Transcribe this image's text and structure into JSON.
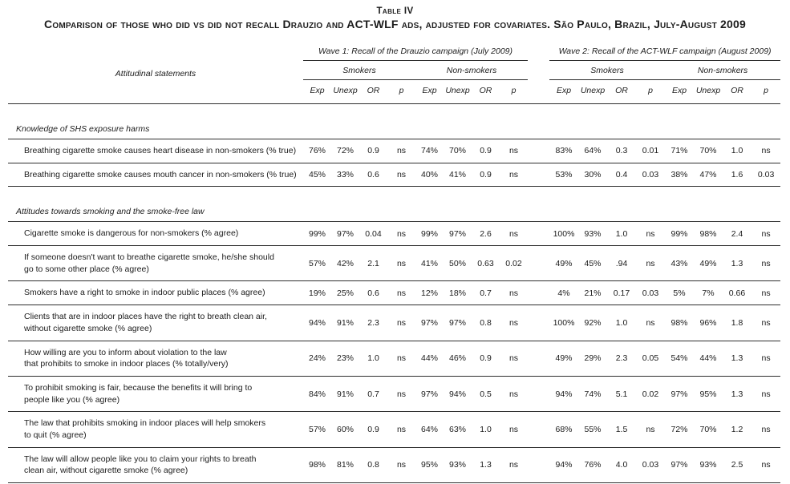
{
  "title": "Table IV",
  "subtitle": "Comparison of those who did vs did not recall Drauzio and ACT-WLF ads, adjusted for covariates. São Paulo, Brazil, July-August 2009",
  "table": {
    "statements_header": "Attitudinal statements",
    "wave1_header": "Wave 1: Recall of the Drauzio campaign (July 2009)",
    "wave2_header": "Wave 2: Recall of the ACT-WLF campaign (August 2009)",
    "groups": [
      "Smokers",
      "Non-smokers"
    ],
    "col_headers": [
      "Exp",
      "Unexp",
      "OR",
      "p"
    ],
    "sections": [
      {
        "label": "Knowledge of SHS exposure harms",
        "rows": [
          {
            "statement": "Breathing cigarette smoke causes heart disease in non-smokers (% true)",
            "values": [
              "76%",
              "72%",
              "0.9",
              "ns",
              "74%",
              "70%",
              "0.9",
              "ns",
              "83%",
              "64%",
              "0.3",
              "0.01",
              "71%",
              "70%",
              "1.0",
              "ns"
            ]
          },
          {
            "statement": "Breathing cigarette smoke causes mouth cancer in non-smokers (% true)",
            "values": [
              "45%",
              "33%",
              "0.6",
              "ns",
              "40%",
              "41%",
              "0.9",
              "ns",
              "53%",
              "30%",
              "0.4",
              "0.03",
              "38%",
              "47%",
              "1.6",
              "0.03"
            ]
          }
        ]
      },
      {
        "label": "Attitudes towards smoking and the smoke-free law",
        "rows": [
          {
            "statement": "Cigarette smoke is dangerous for non-smokers (% agree)",
            "values": [
              "99%",
              "97%",
              "0.04",
              "ns",
              "99%",
              "97%",
              "2.6",
              "ns",
              "100%",
              "93%",
              "1.0",
              "ns",
              "99%",
              "98%",
              "2.4",
              "ns"
            ]
          },
          {
            "statement": "If someone doesn't want to breathe cigarette smoke, he/she should\ngo to some other place (% agree)",
            "values": [
              "57%",
              "42%",
              "2.1",
              "ns",
              "41%",
              "50%",
              "0.63",
              "0.02",
              "49%",
              "45%",
              ".94",
              "ns",
              "43%",
              "49%",
              "1.3",
              "ns"
            ]
          },
          {
            "statement": "Smokers have a right to smoke in indoor public places (% agree)",
            "values": [
              "19%",
              "25%",
              "0.6",
              "ns",
              "12%",
              "18%",
              "0.7",
              "ns",
              "4%",
              "21%",
              "0.17",
              "0.03",
              "5%",
              "7%",
              "0.66",
              "ns"
            ]
          },
          {
            "statement": "Clients that are in indoor places have the right to breath clean air,\nwithout cigarette smoke (% agree)",
            "values": [
              "94%",
              "91%",
              "2.3",
              "ns",
              "97%",
              "97%",
              "0.8",
              "ns",
              "100%",
              "92%",
              "1.0",
              "ns",
              "98%",
              "96%",
              "1.8",
              "ns"
            ]
          },
          {
            "statement": "How willing are you to inform about violation to the law\nthat prohibits to smoke in indoor places (% totally/very)",
            "values": [
              "24%",
              "23%",
              "1.0",
              "ns",
              "44%",
              "46%",
              "0.9",
              "ns",
              "49%",
              "29%",
              "2.3",
              "0.05",
              "54%",
              "44%",
              "1.3",
              "ns"
            ]
          },
          {
            "statement": "To prohibit smoking is fair, because the benefits it will bring to\npeople like you (% agree)",
            "values": [
              "84%",
              "91%",
              "0.7",
              "ns",
              "97%",
              "94%",
              "0.5",
              "ns",
              "94%",
              "74%",
              "5.1",
              "0.02",
              "97%",
              "95%",
              "1.3",
              "ns"
            ]
          },
          {
            "statement": "The law that prohibits smoking in indoor places will help smokers\nto quit (% agree)",
            "values": [
              "57%",
              "60%",
              "0.9",
              "ns",
              "64%",
              "63%",
              "1.0",
              "ns",
              "68%",
              "55%",
              "1.5",
              "ns",
              "72%",
              "70%",
              "1.2",
              "ns"
            ]
          },
          {
            "statement": "The law will allow people like you to claim your rights to breath\nclean air, without cigarette smoke (% agree)",
            "values": [
              "98%",
              "81%",
              "0.8",
              "ns",
              "95%",
              "93%",
              "1.3",
              "ns",
              "94%",
              "76%",
              "4.0",
              "0.03",
              "97%",
              "93%",
              "2.5",
              "ns"
            ]
          }
        ]
      }
    ]
  }
}
